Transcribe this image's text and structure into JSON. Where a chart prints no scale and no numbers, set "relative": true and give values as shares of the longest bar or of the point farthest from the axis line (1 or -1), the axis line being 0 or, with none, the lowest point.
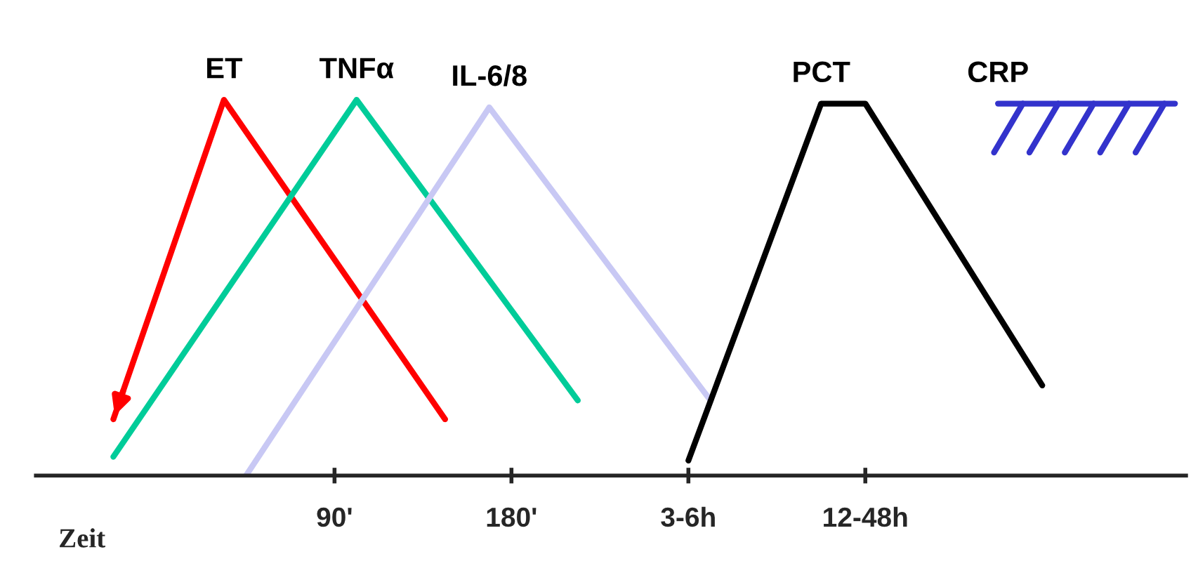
{
  "chart_data": {
    "type": "line",
    "relative": true,
    "xlabel": "Zeit",
    "categories": [
      null,
      null,
      null,
      null,
      null,
      null,
      null,
      null,
      null,
      null,
      null,
      null,
      "90'",
      null,
      null,
      null,
      null,
      null,
      null,
      null,
      "180'",
      null,
      null,
      null,
      null,
      null,
      null,
      null,
      "3-6h",
      null,
      null,
      null,
      null,
      null,
      null,
      null,
      "12-48h",
      null,
      null,
      null,
      null,
      null,
      null,
      null,
      null,
      null,
      null,
      null,
      null,
      null,
      null
    ],
    "series": [
      {
        "name": "ET",
        "color": "#ff0000",
        "values": [
          null,
          null,
          0.15,
          null,
          null,
          null,
          null,
          1.0,
          null,
          null,
          null,
          null,
          null,
          null,
          null,
          null,
          null,
          0.15,
          null,
          null,
          null,
          null,
          null,
          null,
          null,
          null,
          null,
          null,
          null,
          null,
          null,
          null,
          null,
          null,
          null,
          null,
          null,
          null,
          null,
          null,
          null,
          null,
          null,
          null,
          null,
          null,
          null,
          null,
          null,
          null,
          null
        ]
      },
      {
        "name": "TNFα",
        "color": "#00cc99",
        "values": [
          null,
          null,
          0.05,
          null,
          null,
          null,
          null,
          null,
          null,
          null,
          null,
          null,
          null,
          1.0,
          null,
          null,
          null,
          null,
          null,
          null,
          null,
          null,
          null,
          0.2,
          null,
          null,
          null,
          null,
          null,
          null,
          null,
          null,
          null,
          null,
          null,
          null,
          null,
          null,
          null,
          null,
          null,
          null,
          null,
          null,
          null,
          null,
          null,
          null,
          null,
          null,
          null
        ]
      },
      {
        "name": "IL-6/8",
        "color": "#c8c8f4",
        "values": [
          null,
          null,
          null,
          null,
          null,
          null,
          null,
          null,
          0.0,
          null,
          null,
          null,
          null,
          null,
          null,
          null,
          null,
          null,
          null,
          0.98,
          null,
          null,
          null,
          null,
          null,
          null,
          null,
          null,
          null,
          0.2,
          null,
          null,
          null,
          null,
          null,
          null,
          null,
          null,
          null,
          null,
          null,
          null,
          null,
          null,
          null,
          null,
          null,
          null,
          null,
          null,
          null
        ]
      },
      {
        "name": "PCT",
        "color": "#000000",
        "values": [
          null,
          null,
          null,
          null,
          null,
          null,
          null,
          null,
          null,
          null,
          null,
          null,
          null,
          null,
          null,
          null,
          null,
          null,
          null,
          null,
          null,
          null,
          null,
          null,
          null,
          null,
          null,
          null,
          0.04,
          null,
          null,
          null,
          null,
          null,
          0.99,
          null,
          0.99,
          null,
          null,
          null,
          null,
          null,
          null,
          null,
          0.24,
          null,
          null,
          null,
          null,
          null,
          null
        ]
      },
      {
        "name": "CRP",
        "color": "#3333cc",
        "values": [
          null,
          null,
          null,
          null,
          null,
          null,
          null,
          null,
          null,
          null,
          null,
          null,
          null,
          null,
          null,
          null,
          null,
          null,
          null,
          null,
          null,
          null,
          null,
          null,
          null,
          null,
          null,
          null,
          null,
          null,
          null,
          null,
          null,
          null,
          null,
          null,
          null,
          null,
          null,
          null,
          null,
          null,
          0.99,
          null,
          null,
          null,
          null,
          null,
          null,
          null,
          0.99
        ]
      }
    ],
    "grid": false
  }
}
